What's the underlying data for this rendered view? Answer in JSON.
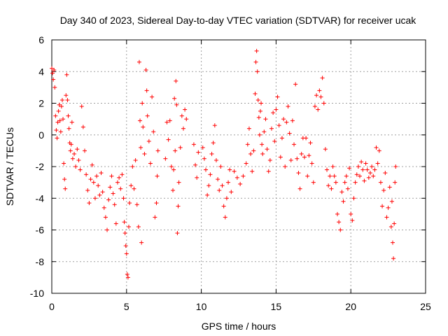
{
  "chart_data": {
    "type": "scatter",
    "title": "Day 340 of 2023, Sidereal Day-to-day VTEC variation (SDTVAR) for receiver ucak",
    "xlabel": "GPS time / hours",
    "ylabel": "SDTVAR / TECUs",
    "xlim": [
      0,
      25
    ],
    "ylim": [
      -10,
      6
    ],
    "xticks": [
      0,
      5,
      10,
      15,
      20,
      25
    ],
    "yticks": [
      -10,
      -8,
      -6,
      -4,
      -2,
      0,
      2,
      4,
      6
    ],
    "xtick_labels": [
      "0",
      "5",
      "10",
      "15",
      "20",
      "25"
    ],
    "ytick_labels": [
      "-10",
      "-8",
      "-6",
      "-4",
      "-2",
      "0",
      "2",
      "4",
      "6"
    ],
    "grid": true,
    "marker": "+",
    "color": "#ff0000",
    "series": [
      {
        "name": "ucak",
        "points": [
          [
            0.0,
            4.2
          ],
          [
            0.05,
            3.9
          ],
          [
            0.1,
            3.5
          ],
          [
            0.15,
            4.1
          ],
          [
            0.2,
            3.0
          ],
          [
            0.25,
            1.2
          ],
          [
            0.3,
            0.3
          ],
          [
            0.35,
            -0.2
          ],
          [
            0.4,
            0.8
          ],
          [
            0.45,
            1.5
          ],
          [
            0.5,
            1.9
          ],
          [
            0.55,
            0.9
          ],
          [
            0.6,
            0.2
          ],
          [
            0.65,
            1.8
          ],
          [
            0.7,
            2.2
          ],
          [
            0.75,
            1.0
          ],
          [
            0.8,
            -1.8
          ],
          [
            0.85,
            -2.8
          ],
          [
            0.9,
            -3.4
          ],
          [
            0.95,
            2.5
          ],
          [
            1.0,
            3.8
          ],
          [
            1.05,
            2.2
          ],
          [
            1.1,
            1.2
          ],
          [
            1.15,
            0.4
          ],
          [
            1.2,
            -0.5
          ],
          [
            1.25,
            -1.0
          ],
          [
            1.3,
            -0.6
          ],
          [
            1.35,
            0.8
          ],
          [
            1.4,
            -1.5
          ],
          [
            1.5,
            -1.2
          ],
          [
            1.6,
            -2.0
          ],
          [
            1.7,
            -0.9
          ],
          [
            1.8,
            -1.6
          ],
          [
            1.9,
            -2.2
          ],
          [
            2.0,
            1.8
          ],
          [
            2.1,
            0.5
          ],
          [
            2.2,
            -1.0
          ],
          [
            2.3,
            -2.5
          ],
          [
            2.4,
            -3.5
          ],
          [
            2.5,
            -4.3
          ],
          [
            2.6,
            -2.8
          ],
          [
            2.7,
            -1.9
          ],
          [
            2.8,
            -3.0
          ],
          [
            2.9,
            -4.0
          ],
          [
            3.0,
            -2.6
          ],
          [
            3.1,
            -3.2
          ],
          [
            3.2,
            -3.8
          ],
          [
            3.3,
            -2.4
          ],
          [
            3.4,
            -3.6
          ],
          [
            3.5,
            -4.6
          ],
          [
            3.6,
            -5.2
          ],
          [
            3.7,
            -6.0
          ],
          [
            3.8,
            -4.1
          ],
          [
            3.9,
            -3.3
          ],
          [
            4.0,
            -2.6
          ],
          [
            4.1,
            -3.7
          ],
          [
            4.2,
            -4.4
          ],
          [
            4.3,
            -5.6
          ],
          [
            4.4,
            -3.0
          ],
          [
            4.5,
            -2.7
          ],
          [
            4.6,
            -3.4
          ],
          [
            4.7,
            -2.5
          ],
          [
            4.8,
            -4.0
          ],
          [
            4.85,
            -5.5
          ],
          [
            4.9,
            -6.2
          ],
          [
            4.95,
            -7.0
          ],
          [
            5.0,
            -7.5
          ],
          [
            5.05,
            -8.8
          ],
          [
            5.1,
            -9.0
          ],
          [
            5.15,
            -5.8
          ],
          [
            5.2,
            -4.3
          ],
          [
            5.3,
            -3.2
          ],
          [
            5.4,
            -2.0
          ],
          [
            5.5,
            -3.4
          ],
          [
            5.6,
            -1.6
          ],
          [
            5.7,
            -4.4
          ],
          [
            5.8,
            -5.8
          ],
          [
            5.85,
            4.6
          ],
          [
            5.9,
            0.9
          ],
          [
            5.95,
            -0.8
          ],
          [
            6.0,
            -6.8
          ],
          [
            6.05,
            2.0
          ],
          [
            6.1,
            0.5
          ],
          [
            6.2,
            -1.2
          ],
          [
            6.3,
            4.1
          ],
          [
            6.35,
            2.8
          ],
          [
            6.4,
            1.2
          ],
          [
            6.5,
            -0.4
          ],
          [
            6.6,
            -1.8
          ],
          [
            6.7,
            2.4
          ],
          [
            6.8,
            0.2
          ],
          [
            6.9,
            -5.2
          ],
          [
            7.0,
            -4.3
          ],
          [
            7.05,
            -2.6
          ],
          [
            7.1,
            -1.0
          ],
          [
            7.6,
            -1.5
          ],
          [
            7.7,
            0.8
          ],
          [
            7.8,
            -0.3
          ],
          [
            7.9,
            0.9
          ],
          [
            8.0,
            -2.0
          ],
          [
            8.1,
            -3.5
          ],
          [
            8.15,
            -2.2
          ],
          [
            8.2,
            2.3
          ],
          [
            8.25,
            -1.0
          ],
          [
            8.3,
            3.4
          ],
          [
            8.35,
            1.9
          ],
          [
            8.4,
            -6.2
          ],
          [
            8.45,
            -4.5
          ],
          [
            8.5,
            -3.0
          ],
          [
            8.6,
            -0.8
          ],
          [
            8.7,
            1.2
          ],
          [
            8.8,
            0.4
          ],
          [
            8.9,
            1.6
          ],
          [
            9.0,
            1.0
          ],
          [
            9.5,
            -0.6
          ],
          [
            9.6,
            -1.9
          ],
          [
            9.7,
            -2.7
          ],
          [
            9.8,
            -1.1
          ],
          [
            10.1,
            -0.8
          ],
          [
            10.2,
            -1.5
          ],
          [
            10.3,
            -2.2
          ],
          [
            10.4,
            -3.8
          ],
          [
            10.5,
            -3.2
          ],
          [
            10.6,
            -2.5
          ],
          [
            10.7,
            -1.2
          ],
          [
            10.8,
            -0.5
          ],
          [
            10.9,
            0.6
          ],
          [
            11.0,
            -1.6
          ],
          [
            11.1,
            -2.8
          ],
          [
            11.2,
            -3.5
          ],
          [
            11.3,
            -2.0
          ],
          [
            11.4,
            -3.2
          ],
          [
            11.5,
            -4.5
          ],
          [
            11.6,
            -5.2
          ],
          [
            11.7,
            -4.0
          ],
          [
            11.8,
            -3.0
          ],
          [
            11.9,
            -2.2
          ],
          [
            12.0,
            -3.6
          ],
          [
            12.2,
            -2.3
          ],
          [
            12.4,
            -2.7
          ],
          [
            12.6,
            -3.1
          ],
          [
            12.8,
            -2.6
          ],
          [
            13.0,
            -1.8
          ],
          [
            13.1,
            -0.6
          ],
          [
            13.2,
            0.4
          ],
          [
            13.3,
            -1.2
          ],
          [
            13.4,
            -2.3
          ],
          [
            13.5,
            -1.0
          ],
          [
            13.6,
            2.6
          ],
          [
            13.65,
            4.6
          ],
          [
            13.7,
            5.3
          ],
          [
            13.75,
            4.0
          ],
          [
            13.8,
            2.2
          ],
          [
            13.85,
            1.1
          ],
          [
            13.9,
            0.0
          ],
          [
            13.95,
            1.5
          ],
          [
            14.0,
            2.0
          ],
          [
            14.05,
            -0.6
          ],
          [
            14.1,
            -1.2
          ],
          [
            14.2,
            0.2
          ],
          [
            14.3,
            1.0
          ],
          [
            14.4,
            -0.9
          ],
          [
            14.5,
            -2.3
          ],
          [
            14.6,
            -1.6
          ],
          [
            14.7,
            0.4
          ],
          [
            14.8,
            1.4
          ],
          [
            14.9,
            -0.4
          ],
          [
            15.0,
            1.6
          ],
          [
            15.1,
            2.4
          ],
          [
            15.2,
            0.6
          ],
          [
            15.3,
            -1.4
          ],
          [
            15.4,
            -0.2
          ],
          [
            15.5,
            1.0
          ],
          [
            15.6,
            -2.0
          ],
          [
            15.7,
            0.8
          ],
          [
            15.8,
            1.8
          ],
          [
            15.9,
            0.1
          ],
          [
            16.0,
            -1.6
          ],
          [
            16.1,
            0.9
          ],
          [
            16.2,
            -0.6
          ],
          [
            16.3,
            3.2
          ],
          [
            16.4,
            -1.5
          ],
          [
            16.5,
            -2.4
          ],
          [
            16.6,
            -3.4
          ],
          [
            16.7,
            -1.2
          ],
          [
            16.8,
            -0.2
          ],
          [
            16.9,
            -1.4
          ],
          [
            17.0,
            -0.2
          ],
          [
            17.1,
            -2.6
          ],
          [
            17.2,
            -1.3
          ],
          [
            17.3,
            -0.5
          ],
          [
            17.4,
            -1.8
          ],
          [
            17.5,
            -3.0
          ],
          [
            17.6,
            1.8
          ],
          [
            17.7,
            2.5
          ],
          [
            17.8,
            1.6
          ],
          [
            17.9,
            2.8
          ],
          [
            18.0,
            2.4
          ],
          [
            18.1,
            3.6
          ],
          [
            18.2,
            2.0
          ],
          [
            18.3,
            -0.9
          ],
          [
            18.4,
            -2.2
          ],
          [
            18.5,
            -3.2
          ],
          [
            18.6,
            -2.6
          ],
          [
            18.7,
            -3.4
          ],
          [
            18.8,
            -2.0
          ],
          [
            18.9,
            -2.6
          ],
          [
            19.0,
            -3.0
          ],
          [
            19.1,
            -5.0
          ],
          [
            19.2,
            -5.5
          ],
          [
            19.3,
            -6.0
          ],
          [
            19.4,
            -3.6
          ],
          [
            19.5,
            -4.2
          ],
          [
            19.6,
            -3.0
          ],
          [
            19.7,
            -2.6
          ],
          [
            19.8,
            -3.4
          ],
          [
            19.9,
            -2.1
          ],
          [
            20.0,
            -5.0
          ],
          [
            20.1,
            -5.4
          ],
          [
            20.2,
            -4.0
          ],
          [
            20.3,
            -3.0
          ],
          [
            20.4,
            -2.5
          ],
          [
            20.5,
            -2.0
          ],
          [
            20.6,
            -2.6
          ],
          [
            20.7,
            -1.7
          ],
          [
            20.8,
            -2.2
          ],
          [
            20.9,
            -2.9
          ],
          [
            21.0,
            -1.8
          ],
          [
            21.1,
            -2.2
          ],
          [
            21.2,
            -2.7
          ],
          [
            21.3,
            -2.4
          ],
          [
            21.4,
            -2.0
          ],
          [
            21.5,
            -2.6
          ],
          [
            21.6,
            -2.2
          ],
          [
            21.7,
            -0.8
          ],
          [
            21.8,
            -1.8
          ],
          [
            21.9,
            -1.0
          ],
          [
            22.0,
            -3.0
          ],
          [
            22.1,
            -4.5
          ],
          [
            22.2,
            -3.5
          ],
          [
            22.3,
            -2.4
          ],
          [
            22.4,
            -5.2
          ],
          [
            22.5,
            -4.6
          ],
          [
            22.6,
            -3.3
          ],
          [
            22.7,
            -5.8
          ],
          [
            22.75,
            -4.2
          ],
          [
            22.8,
            -6.8
          ],
          [
            22.85,
            -7.8
          ],
          [
            22.9,
            -5.6
          ],
          [
            22.95,
            -3.0
          ],
          [
            23.0,
            -2.0
          ]
        ]
      }
    ]
  }
}
